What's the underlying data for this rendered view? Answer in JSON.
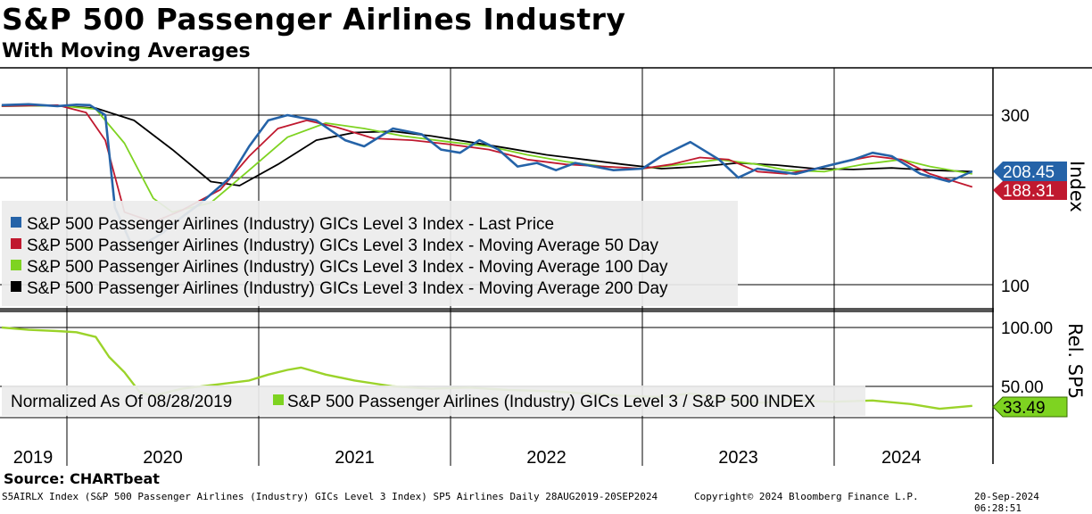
{
  "header": {
    "title": "S&P 500 Passenger Airlines Industry",
    "subtitle": "With Moving Averages"
  },
  "footer": {
    "source": "Source: CHARTbeat",
    "left": "S5AIRLX Index (S&P 500 Passenger Airlines (Industry) GICs Level 3 Index) SP5 Airlines  Daily 28AUG2019-20SEP2024",
    "center": "Copyright© 2024 Bloomberg Finance L.P.",
    "right": "20-Sep-2024 06:28:51"
  },
  "colors": {
    "last_price": "#2563a8",
    "ma50": "#c0192f",
    "ma100": "#7ed321",
    "ma200": "#000000",
    "ratio": "#9bd32a",
    "legend_bg": "#ececec",
    "grid": "#000000"
  },
  "chart_data": [
    {
      "type": "line",
      "panel": "upper",
      "ylabel": "Index",
      "y_ticks": [
        "300",
        "100"
      ],
      "x_ticks": [
        "2019",
        "2020",
        "2021",
        "2022",
        "2023",
        "2024"
      ],
      "last_value_badges": [
        {
          "label": "208.45",
          "series": "Last Price"
        },
        {
          "label": "188.31",
          "series": "Moving Average 50 Day"
        }
      ],
      "legend_placement": "left",
      "series": [
        {
          "name": "S&P 500 Passenger Airlines (Industry) GICs Level 3 Index - Last Price",
          "x": [
            2019.66,
            2019.8,
            2019.95,
            2020.05,
            2020.12,
            2020.2,
            2020.25,
            2020.35,
            2020.5,
            2020.6,
            2020.7,
            2020.85,
            2020.95,
            2021.05,
            2021.15,
            2021.22,
            2021.3,
            2021.45,
            2021.55,
            2021.7,
            2021.85,
            2021.95,
            2022.05,
            2022.15,
            2022.25,
            2022.35,
            2022.45,
            2022.55,
            2022.65,
            2022.75,
            2022.85,
            2023.0,
            2023.1,
            2023.25,
            2023.4,
            2023.5,
            2023.6,
            2023.8,
            2023.95,
            2024.1,
            2024.2,
            2024.3,
            2024.45,
            2024.6,
            2024.72
          ],
          "values": [
            320,
            322,
            318,
            321,
            320,
            300,
            165,
            125,
            140,
            155,
            170,
            200,
            245,
            290,
            300,
            295,
            290,
            255,
            245,
            275,
            265,
            240,
            235,
            255,
            240,
            215,
            220,
            210,
            220,
            215,
            210,
            212,
            230,
            252,
            225,
            200,
            212,
            205,
            215,
            225,
            235,
            230,
            205,
            195,
            208.45
          ]
        },
        {
          "name": "S&P 500 Passenger Airlines (Industry) GICs Level 3 Index - Moving Average 50 Day",
          "x": [
            2019.66,
            2019.95,
            2020.1,
            2020.2,
            2020.3,
            2020.45,
            2020.6,
            2020.8,
            2020.95,
            2021.1,
            2021.25,
            2021.4,
            2021.6,
            2021.8,
            2022.0,
            2022.2,
            2022.4,
            2022.6,
            2022.8,
            2023.0,
            2023.15,
            2023.3,
            2023.45,
            2023.6,
            2023.75,
            2023.9,
            2024.05,
            2024.2,
            2024.35,
            2024.5,
            2024.72
          ],
          "values": [
            318,
            320,
            305,
            255,
            160,
            150,
            162,
            185,
            230,
            275,
            290,
            278,
            258,
            255,
            248,
            240,
            225,
            218,
            215,
            212,
            218,
            228,
            225,
            208,
            205,
            212,
            222,
            230,
            225,
            205,
            188.31
          ]
        },
        {
          "name": "S&P 500 Passenger Airlines (Industry) GICs Level 3 Index - Moving Average 100 Day",
          "x": [
            2019.66,
            2019.95,
            2020.15,
            2020.3,
            2020.45,
            2020.55,
            2020.75,
            2020.95,
            2021.15,
            2021.35,
            2021.55,
            2021.75,
            2022.0,
            2022.2,
            2022.4,
            2022.6,
            2022.8,
            2023.0,
            2023.2,
            2023.4,
            2023.6,
            2023.75,
            2023.95,
            2024.15,
            2024.35,
            2024.5,
            2024.72
          ],
          "values": [
            318,
            319,
            312,
            250,
            175,
            160,
            170,
            210,
            260,
            285,
            275,
            262,
            252,
            245,
            232,
            222,
            215,
            212,
            218,
            225,
            218,
            210,
            208,
            218,
            225,
            215,
            205
          ]
        },
        {
          "name": "S&P 500 Passenger Airlines (Industry) GICs Level 3 Index - Moving Average 200 Day",
          "x": [
            2019.66,
            2019.95,
            2020.15,
            2020.35,
            2020.55,
            2020.75,
            2020.9,
            2021.1,
            2021.3,
            2021.5,
            2021.7,
            2021.9,
            2022.1,
            2022.3,
            2022.5,
            2022.7,
            2022.9,
            2023.1,
            2023.3,
            2023.5,
            2023.7,
            2023.9,
            2024.1,
            2024.3,
            2024.5,
            2024.72
          ],
          "values": [
            318,
            319,
            314,
            290,
            240,
            195,
            190,
            218,
            255,
            268,
            270,
            262,
            252,
            242,
            232,
            225,
            218,
            212,
            215,
            220,
            217,
            212,
            211,
            213,
            210,
            208
          ]
        }
      ]
    },
    {
      "type": "line",
      "panel": "lower",
      "ylabel": "Rel. SP5",
      "y_ticks": [
        "100.00",
        "50.00"
      ],
      "legend_placement": "left",
      "legend_label": "Normalized As Of 08/28/2019",
      "last_value_badge": "33.49",
      "series": [
        {
          "name": "S&P 500 Passenger Airlines (Industry) GICs Level 3 / S&P 500 INDEX",
          "x": [
            2019.66,
            2019.8,
            2019.95,
            2020.05,
            2020.15,
            2020.22,
            2020.3,
            2020.38,
            2020.45,
            2020.6,
            2020.8,
            2020.95,
            2021.05,
            2021.15,
            2021.22,
            2021.35,
            2021.5,
            2021.7,
            2021.9,
            2022.1,
            2022.3,
            2022.5,
            2022.7,
            2022.9,
            2023.1,
            2023.25,
            2023.4,
            2023.6,
            2023.8,
            2024.0,
            2024.2,
            2024.4,
            2024.55,
            2024.72
          ],
          "values": [
            100,
            98,
            97,
            96,
            92,
            75,
            62,
            45,
            42,
            48,
            52,
            55,
            60,
            64,
            66,
            60,
            55,
            50,
            48,
            49,
            47,
            46,
            44,
            42,
            41,
            44,
            40,
            36,
            38,
            37,
            38,
            35,
            31,
            33.49
          ]
        }
      ]
    }
  ]
}
